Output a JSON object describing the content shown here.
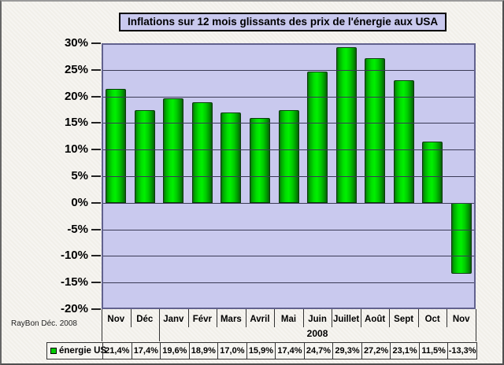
{
  "title": "Inflations sur 12 mois glissants des prix de l'énergie aux USA",
  "credit": "RayBon Déc. 2008",
  "chart_data": {
    "type": "bar",
    "title": "Inflations sur 12 mois glissants des prix de l'énergie aux USA",
    "categories": [
      "Nov",
      "Déc",
      "Janv",
      "Févr",
      "Mars",
      "Avril",
      "Mai",
      "Juin",
      "Juillet",
      "Août",
      "Sept",
      "Oct",
      "Nov"
    ],
    "year_group": {
      "label": "2008",
      "start_index": 2,
      "end_index": 12
    },
    "series": [
      {
        "name": "énergie US",
        "values": [
          21.4,
          17.4,
          19.6,
          18.9,
          17.0,
          15.9,
          17.4,
          24.7,
          29.3,
          27.2,
          23.1,
          11.5,
          -13.3
        ]
      }
    ],
    "value_labels": [
      "21,4%",
      "17,4%",
      "19,6%",
      "18,9%",
      "17,0%",
      "15,9%",
      "17,4%",
      "24,7%",
      "29,3%",
      "27,2%",
      "23,1%",
      "11,5%",
      "-13,3%"
    ],
    "ylim": [
      -20,
      30
    ],
    "ytick_step": 5,
    "ytick_labels": [
      "30%",
      "25%",
      "20%",
      "15%",
      "10%",
      "5%",
      "0%",
      "-5%",
      "-10%",
      "-15%",
      "-20%"
    ],
    "grid": true,
    "legend_position": "bottom-table",
    "colors": {
      "bar": "#00dd00",
      "bar_edge": "#0a3c0a",
      "plot_bg": "#c9c9ee",
      "grid": "#3a3a55",
      "title_bg": "#c9c9ee",
      "page_bg": "#f1efe9"
    }
  }
}
